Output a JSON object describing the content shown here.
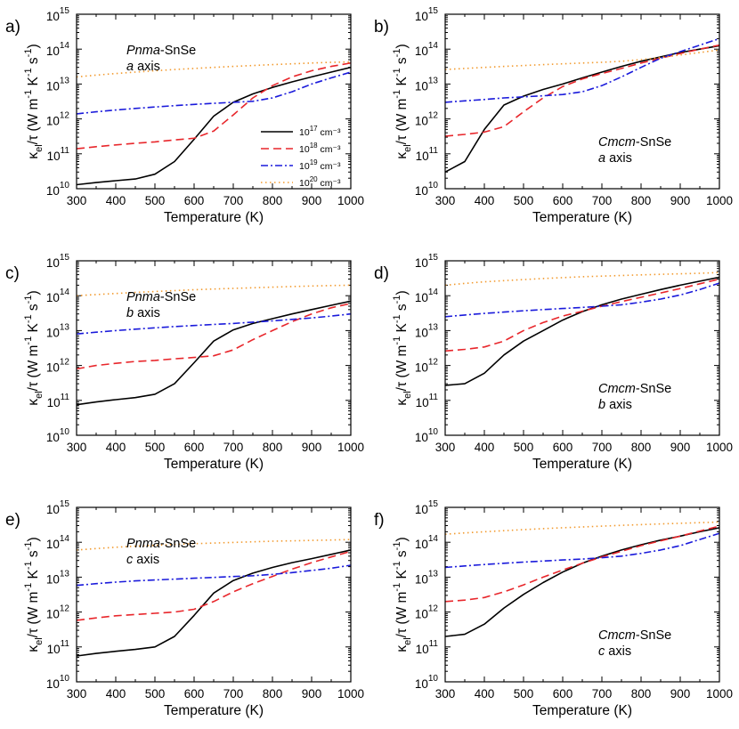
{
  "figure": {
    "legend_unit": "cm⁻³"
  },
  "legend": [
    {
      "exp": "17",
      "color": "#000000",
      "dash": "solid",
      "name": "1e17"
    },
    {
      "exp": "18",
      "color": "#e8262b",
      "dash": "dashed",
      "name": "1e18"
    },
    {
      "exp": "19",
      "color": "#1a1adb",
      "dash": "dashdot",
      "name": "1e19"
    },
    {
      "exp": "20",
      "color": "#f29a2e",
      "dash": "dotted",
      "name": "1e20"
    }
  ],
  "chart_data": [
    {
      "type": "line",
      "panel": "a)",
      "title_italic": "Pnma",
      "title_rest": "-SnSe",
      "axis_letter": "a",
      "axis_word": "axis",
      "xlabel": "Temperature (K)",
      "ylabel": "κel/τ (W m-1 K-1 s-1)",
      "x": [
        300,
        350,
        400,
        450,
        500,
        550,
        600,
        650,
        700,
        750,
        800,
        850,
        900,
        950,
        1000
      ],
      "xlim": [
        300,
        1000
      ],
      "ylim_exp": [
        10,
        15
      ],
      "yscale": "log",
      "xticks": [
        "300",
        "400",
        "500",
        "600",
        "700",
        "800",
        "900",
        "1000"
      ],
      "yticks": [
        "10",
        "11",
        "12",
        "13",
        "14",
        "15"
      ],
      "series": [
        {
          "name": "10^17 cm^-3",
          "values": [
            13000000000.0,
            15000000000.0,
            17000000000.0,
            19000000000.0,
            26000000000.0,
            60000000000.0,
            260000000000.0,
            1200000000000.0,
            3000000000000.0,
            5200000000000.0,
            8000000000000.0,
            11500000000000.0,
            16000000000000.0,
            22000000000000.0,
            30000000000000.0
          ]
        },
        {
          "name": "10^18 cm^-3",
          "values": [
            140000000000.0,
            160000000000.0,
            180000000000.0,
            200000000000.0,
            220000000000.0,
            250000000000.0,
            280000000000.0,
            450000000000.0,
            1300000000000.0,
            4000000000000.0,
            9000000000000.0,
            16000000000000.0,
            24000000000000.0,
            32000000000000.0,
            40000000000000.0
          ]
        },
        {
          "name": "10^19 cm^-3",
          "values": [
            1400000000000.0,
            1600000000000.0,
            1800000000000.0,
            2000000000000.0,
            2200000000000.0,
            2400000000000.0,
            2600000000000.0,
            2800000000000.0,
            3000000000000.0,
            3200000000000.0,
            4000000000000.0,
            6000000000000.0,
            10000000000000.0,
            15000000000000.0,
            22000000000000.0
          ]
        },
        {
          "name": "10^20 cm^-3",
          "values": [
            16000000000000.0,
            18000000000000.0,
            20000000000000.0,
            22000000000000.0,
            24000000000000.0,
            26000000000000.0,
            28000000000000.0,
            30000000000000.0,
            32000000000000.0,
            34000000000000.0,
            36000000000000.0,
            38000000000000.0,
            40000000000000.0,
            42000000000000.0,
            43000000000000.0
          ]
        }
      ]
    },
    {
      "type": "line",
      "panel": "b)",
      "title_italic": "Cmcm",
      "title_rest": "-SnSe",
      "axis_letter": "a",
      "axis_word": "axis",
      "xlabel": "Temperature (K)",
      "ylabel": "κel/τ (W m-1 K-1 s-1)",
      "x": [
        300,
        350,
        400,
        450,
        500,
        550,
        600,
        650,
        700,
        750,
        800,
        850,
        900,
        950,
        1000
      ],
      "xlim": [
        300,
        1000
      ],
      "ylim_exp": [
        10,
        15
      ],
      "yscale": "log",
      "xticks": [
        "300",
        "400",
        "500",
        "600",
        "700",
        "800",
        "900",
        "1000"
      ],
      "yticks": [
        "10",
        "11",
        "12",
        "13",
        "14",
        "15"
      ],
      "series": [
        {
          "name": "10^17 cm^-3",
          "values": [
            30000000000.0,
            60000000000.0,
            500000000000.0,
            2500000000000.0,
            4500000000000.0,
            7000000000000.0,
            10000000000000.0,
            15000000000000.0,
            22000000000000.0,
            32000000000000.0,
            45000000000000.0,
            60000000000000.0,
            80000000000000.0,
            100000000000000.0,
            125000000000000.0
          ]
        },
        {
          "name": "10^18 cm^-3",
          "values": [
            320000000000.0,
            360000000000.0,
            420000000000.0,
            600000000000.0,
            1600000000000.0,
            4000000000000.0,
            8500000000000.0,
            14000000000000.0,
            20000000000000.0,
            28000000000000.0,
            40000000000000.0,
            55000000000000.0,
            75000000000000.0,
            100000000000000.0,
            130000000000000.0
          ]
        },
        {
          "name": "10^19 cm^-3",
          "values": [
            3000000000000.0,
            3300000000000.0,
            3600000000000.0,
            4000000000000.0,
            4300000000000.0,
            4600000000000.0,
            5000000000000.0,
            6000000000000.0,
            9000000000000.0,
            16000000000000.0,
            30000000000000.0,
            55000000000000.0,
            85000000000000.0,
            130000000000000.0,
            200000000000000.0
          ]
        },
        {
          "name": "10^20 cm^-3",
          "values": [
            26000000000000.0,
            28000000000000.0,
            30000000000000.0,
            32000000000000.0,
            34000000000000.0,
            36000000000000.0,
            38000000000000.0,
            40000000000000.0,
            42000000000000.0,
            45000000000000.0,
            50000000000000.0,
            58000000000000.0,
            68000000000000.0,
            80000000000000.0,
            95000000000000.0
          ]
        }
      ]
    },
    {
      "type": "line",
      "panel": "c)",
      "title_italic": "Pnma",
      "title_rest": "-SnSe",
      "axis_letter": "b",
      "axis_word": "axis",
      "xlabel": "Temperature (K)",
      "ylabel": "κel/τ (W m-1 K-1 s-1)",
      "x": [
        300,
        350,
        400,
        450,
        500,
        550,
        600,
        650,
        700,
        750,
        800,
        850,
        900,
        950,
        1000
      ],
      "xlim": [
        300,
        1000
      ],
      "ylim_exp": [
        10,
        15
      ],
      "yscale": "log",
      "xticks": [
        "300",
        "400",
        "500",
        "600",
        "700",
        "800",
        "900",
        "1000"
      ],
      "yticks": [
        "10",
        "11",
        "12",
        "13",
        "14",
        "15"
      ],
      "series": [
        {
          "name": "10^17 cm^-3",
          "values": [
            75000000000.0,
            90000000000.0,
            105000000000.0,
            120000000000.0,
            150000000000.0,
            300000000000.0,
            1200000000000.0,
            5000000000000.0,
            10500000000000.0,
            16000000000000.0,
            22000000000000.0,
            30000000000000.0,
            40000000000000.0,
            53000000000000.0,
            70000000000000.0
          ]
        },
        {
          "name": "10^18 cm^-3",
          "values": [
            800000000000.0,
            1000000000000.0,
            1150000000000.0,
            1300000000000.0,
            1400000000000.0,
            1550000000000.0,
            1700000000000.0,
            1900000000000.0,
            2800000000000.0,
            5500000000000.0,
            10000000000000.0,
            18000000000000.0,
            30000000000000.0,
            45000000000000.0,
            60000000000000.0
          ]
        },
        {
          "name": "10^19 cm^-3",
          "values": [
            8000000000000.0,
            9000000000000.0,
            10000000000000.0,
            11000000000000.0,
            12000000000000.0,
            13000000000000.0,
            14000000000000.0,
            15000000000000.0,
            16000000000000.0,
            17500000000000.0,
            19000000000000.0,
            21000000000000.0,
            23000000000000.0,
            26000000000000.0,
            30000000000000.0
          ]
        },
        {
          "name": "10^20 cm^-3",
          "values": [
            100000000000000.0,
            108000000000000.0,
            116000000000000.0,
            124000000000000.0,
            132000000000000.0,
            140000000000000.0,
            148000000000000.0,
            155000000000000.0,
            162000000000000.0,
            169000000000000.0,
            176000000000000.0,
            183000000000000.0,
            190000000000000.0,
            195000000000000.0,
            200000000000000.0
          ]
        }
      ]
    },
    {
      "type": "line",
      "panel": "d)",
      "title_italic": "Cmcm",
      "title_rest": "-SnSe",
      "axis_letter": "b",
      "axis_word": "axis",
      "xlabel": "Temperature (K)",
      "ylabel": "κel/τ (W m-1 K-1 s-1)",
      "x": [
        300,
        350,
        400,
        450,
        500,
        550,
        600,
        650,
        700,
        750,
        800,
        850,
        900,
        950,
        1000
      ],
      "xlim": [
        300,
        1000
      ],
      "ylim_exp": [
        10,
        15
      ],
      "yscale": "log",
      "xticks": [
        "300",
        "400",
        "500",
        "600",
        "700",
        "800",
        "900",
        "1000"
      ],
      "yticks": [
        "10",
        "11",
        "12",
        "13",
        "14",
        "15"
      ],
      "series": [
        {
          "name": "10^17 cm^-3",
          "values": [
            270000000000.0,
            300000000000.0,
            600000000000.0,
            2000000000000.0,
            5000000000000.0,
            10000000000000.0,
            20000000000000.0,
            35000000000000.0,
            55000000000000.0,
            80000000000000.0,
            110000000000000.0,
            150000000000000.0,
            200000000000000.0,
            260000000000000.0,
            340000000000000.0
          ]
        },
        {
          "name": "10^18 cm^-3",
          "values": [
            2600000000000.0,
            2900000000000.0,
            3400000000000.0,
            5000000000000.0,
            10000000000000.0,
            17000000000000.0,
            26000000000000.0,
            36000000000000.0,
            50000000000000.0,
            68000000000000.0,
            90000000000000.0,
            120000000000000.0,
            160000000000000.0,
            220000000000000.0,
            300000000000000.0
          ]
        },
        {
          "name": "10^19 cm^-3",
          "values": [
            25000000000000.0,
            28000000000000.0,
            31000000000000.0,
            34000000000000.0,
            37000000000000.0,
            40000000000000.0,
            43000000000000.0,
            46000000000000.0,
            50000000000000.0,
            55000000000000.0,
            65000000000000.0,
            80000000000000.0,
            105000000000000.0,
            150000000000000.0,
            230000000000000.0
          ]
        },
        {
          "name": "10^20 cm^-3",
          "values": [
            200000000000000.0,
            225000000000000.0,
            250000000000000.0,
            270000000000000.0,
            290000000000000.0,
            310000000000000.0,
            330000000000000.0,
            350000000000000.0,
            365000000000000.0,
            380000000000000.0,
            395000000000000.0,
            410000000000000.0,
            425000000000000.0,
            440000000000000.0,
            460000000000000.0
          ]
        }
      ]
    },
    {
      "type": "line",
      "panel": "e)",
      "title_italic": "Pnma",
      "title_rest": "-SnSe",
      "axis_letter": "c",
      "axis_word": "axis",
      "xlabel": "Temperature (K)",
      "ylabel": "κel/τ (W m-1 K-1 s-1)",
      "x": [
        300,
        350,
        400,
        450,
        500,
        550,
        600,
        650,
        700,
        750,
        800,
        850,
        900,
        950,
        1000
      ],
      "xlim": [
        300,
        1000
      ],
      "ylim_exp": [
        10,
        15
      ],
      "yscale": "log",
      "xticks": [
        "300",
        "400",
        "500",
        "600",
        "700",
        "800",
        "900",
        "1000"
      ],
      "yticks": [
        "10",
        "11",
        "12",
        "13",
        "14",
        "15"
      ],
      "series": [
        {
          "name": "10^17 cm^-3",
          "values": [
            55000000000.0,
            65000000000.0,
            75000000000.0,
            85000000000.0,
            100000000000.0,
            200000000000.0,
            800000000000.0,
            3500000000000.0,
            8000000000000.0,
            13000000000000.0,
            19000000000000.0,
            26000000000000.0,
            34000000000000.0,
            45000000000000.0,
            60000000000000.0
          ]
        },
        {
          "name": "10^18 cm^-3",
          "values": [
            580000000000.0,
            680000000000.0,
            780000000000.0,
            850000000000.0,
            920000000000.0,
            1000000000000.0,
            1200000000000.0,
            2000000000000.0,
            3800000000000.0,
            6500000000000.0,
            10500000000000.0,
            17000000000000.0,
            26000000000000.0,
            38000000000000.0,
            55000000000000.0
          ]
        },
        {
          "name": "10^19 cm^-3",
          "values": [
            5800000000000.0,
            6500000000000.0,
            7200000000000.0,
            7800000000000.0,
            8300000000000.0,
            8800000000000.0,
            9300000000000.0,
            9800000000000.0,
            10400000000000.0,
            11000000000000.0,
            12000000000000.0,
            13500000000000.0,
            15500000000000.0,
            18000000000000.0,
            22000000000000.0
          ]
        },
        {
          "name": "10^20 cm^-3",
          "values": [
            60000000000000.0,
            66000000000000.0,
            72000000000000.0,
            77000000000000.0,
            82000000000000.0,
            87000000000000.0,
            91000000000000.0,
            95000000000000.0,
            99000000000000.0,
            103000000000000.0,
            107000000000000.0,
            110000000000000.0,
            113000000000000.0,
            116000000000000.0,
            120000000000000.0
          ]
        }
      ]
    },
    {
      "type": "line",
      "panel": "f)",
      "title_italic": "Cmcm",
      "title_rest": "-SnSe",
      "axis_letter": "c",
      "axis_word": "axis",
      "xlabel": "Temperature (K)",
      "ylabel": "κel/τ (W m-1 K-1 s-1)",
      "x": [
        300,
        350,
        400,
        450,
        500,
        550,
        600,
        650,
        700,
        750,
        800,
        850,
        900,
        950,
        1000
      ],
      "xlim": [
        300,
        1000
      ],
      "ylim_exp": [
        10,
        15
      ],
      "yscale": "log",
      "xticks": [
        "300",
        "400",
        "500",
        "600",
        "700",
        "800",
        "900",
        "1000"
      ],
      "yticks": [
        "10",
        "11",
        "12",
        "13",
        "14",
        "15"
      ],
      "series": [
        {
          "name": "10^17 cm^-3",
          "values": [
            200000000000.0,
            230000000000.0,
            450000000000.0,
            1300000000000.0,
            3200000000000.0,
            7000000000000.0,
            14000000000000.0,
            25000000000000.0,
            40000000000000.0,
            60000000000000.0,
            85000000000000.0,
            115000000000000.0,
            150000000000000.0,
            200000000000000.0,
            260000000000000.0
          ]
        },
        {
          "name": "10^18 cm^-3",
          "values": [
            2000000000000.0,
            2200000000000.0,
            2600000000000.0,
            3800000000000.0,
            6000000000000.0,
            10000000000000.0,
            16000000000000.0,
            25000000000000.0,
            38000000000000.0,
            55000000000000.0,
            80000000000000.0,
            110000000000000.0,
            150000000000000.0,
            210000000000000.0,
            290000000000000.0
          ]
        },
        {
          "name": "10^19 cm^-3",
          "values": [
            19000000000000.0,
            21000000000000.0,
            23000000000000.0,
            25000000000000.0,
            27000000000000.0,
            29000000000000.0,
            31000000000000.0,
            33000000000000.0,
            36000000000000.0,
            40000000000000.0,
            48000000000000.0,
            60000000000000.0,
            80000000000000.0,
            120000000000000.0,
            180000000000000.0
          ]
        },
        {
          "name": "10^20 cm^-3",
          "values": [
            170000000000000.0,
            185000000000000.0,
            200000000000000.0,
            215000000000000.0,
            230000000000000.0,
            245000000000000.0,
            260000000000000.0,
            275000000000000.0,
            290000000000000.0,
            305000000000000.0,
            320000000000000.0,
            335000000000000.0,
            350000000000000.0,
            365000000000000.0,
            380000000000000.0
          ]
        }
      ]
    }
  ]
}
